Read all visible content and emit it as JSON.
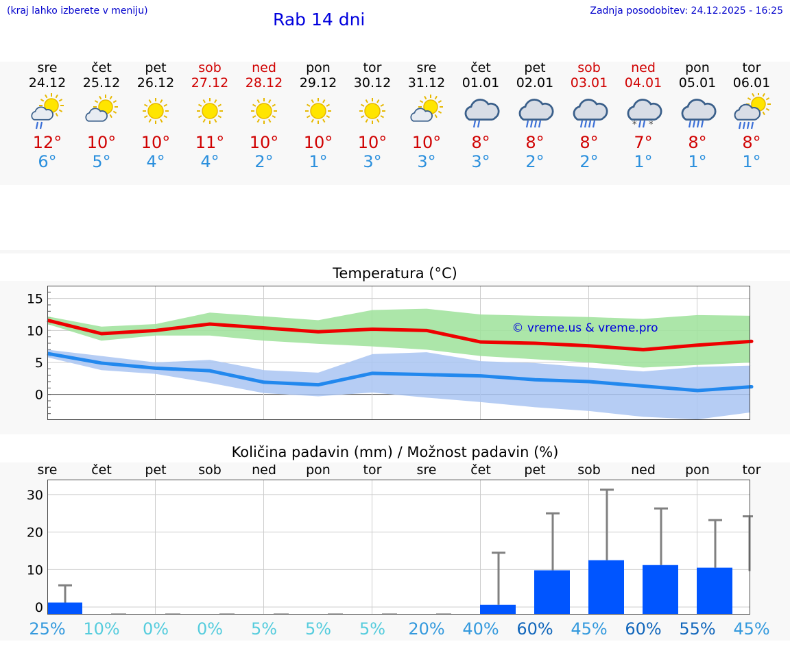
{
  "header": {
    "menu_hint": "(kraj lahko izberete v meniju)",
    "title": "Rab 14 dni",
    "updated": "Zadnja posodobitev: 24.12.2025 - 16:25"
  },
  "days": [
    {
      "name": "sre",
      "date": "24.12",
      "tmax": "12°",
      "tmin": "6°",
      "icon": "sun-cloud-rain-icon",
      "weekend": false,
      "rain": "25%"
    },
    {
      "name": "čet",
      "date": "25.12",
      "tmax": "10°",
      "tmin": "5°",
      "icon": "sun-cloud-icon",
      "weekend": false,
      "rain": "10%"
    },
    {
      "name": "pet",
      "date": "26.12",
      "tmax": "10°",
      "tmin": "4°",
      "icon": "sun-icon",
      "weekend": false,
      "rain": "0%"
    },
    {
      "name": "sob",
      "date": "27.12",
      "tmax": "11°",
      "tmin": "4°",
      "icon": "sun-icon",
      "weekend": true,
      "rain": "0%"
    },
    {
      "name": "ned",
      "date": "28.12",
      "tmax": "10°",
      "tmin": "2°",
      "icon": "sun-icon",
      "weekend": true,
      "rain": "5%"
    },
    {
      "name": "pon",
      "date": "29.12",
      "tmax": "10°",
      "tmin": "1°",
      "icon": "sun-icon",
      "weekend": false,
      "rain": "5%"
    },
    {
      "name": "tor",
      "date": "30.12",
      "tmax": "10°",
      "tmin": "3°",
      "icon": "sun-icon",
      "weekend": false,
      "rain": "5%"
    },
    {
      "name": "sre",
      "date": "31.12",
      "tmax": "10°",
      "tmin": "3°",
      "icon": "sun-cloud-icon",
      "weekend": false,
      "rain": "20%"
    },
    {
      "name": "čet",
      "date": "01.01",
      "tmax": "8°",
      "tmin": "3°",
      "icon": "cloud-rain-icon",
      "weekend": false,
      "rain": "40%"
    },
    {
      "name": "pet",
      "date": "02.01",
      "tmax": "8°",
      "tmin": "2°",
      "icon": "cloud-heavy-rain-icon",
      "weekend": false,
      "rain": "60%"
    },
    {
      "name": "sob",
      "date": "03.01",
      "tmax": "8°",
      "tmin": "2°",
      "icon": "cloud-heavy-rain-icon",
      "weekend": true,
      "rain": "45%"
    },
    {
      "name": "ned",
      "date": "04.01",
      "tmax": "7°",
      "tmin": "1°",
      "icon": "cloud-sleet-icon",
      "weekend": true,
      "rain": "60%"
    },
    {
      "name": "pon",
      "date": "05.01",
      "tmax": "8°",
      "tmin": "1°",
      "icon": "cloud-heavy-rain-icon",
      "weekend": false,
      "rain": "55%"
    },
    {
      "name": "tor",
      "date": "06.01",
      "tmax": "8°",
      "tmin": "1°",
      "icon": "sun-cloud-heavy-rain-icon",
      "weekend": false,
      "rain": "45%"
    }
  ],
  "colors": {
    "max_line": "#ee0000",
    "min_line": "#2288ee",
    "max_band": "#9ee29a",
    "min_band": "#a9c4f2",
    "bar": "#0055ff",
    "errbar": "#808080",
    "rain_light": "#55ccdd",
    "rain_mid": "#3399dd",
    "rain_dark": "#1166bb"
  },
  "chart_data": [
    {
      "type": "line",
      "title": "Temperatura (°C)",
      "watermark": "© vreme.us & vreme.pro",
      "ylim": [
        -4,
        17
      ],
      "yticks": [
        0,
        5,
        10,
        15
      ],
      "x": [
        0,
        1,
        2,
        3,
        4,
        5,
        6,
        7,
        8,
        9,
        10,
        11,
        12,
        13
      ],
      "series": [
        {
          "name": "max",
          "values": [
            11.6,
            9.5,
            10.0,
            11.0,
            10.4,
            9.8,
            10.2,
            10.0,
            8.2,
            8.0,
            7.6,
            7.0,
            7.7,
            8.3
          ]
        },
        {
          "name": "max_low",
          "values": [
            11.0,
            8.4,
            9.2,
            9.2,
            8.4,
            7.9,
            7.5,
            7.0,
            6.0,
            5.5,
            5.0,
            4.2,
            4.6,
            5.0
          ]
        },
        {
          "name": "max_high",
          "values": [
            12.2,
            10.6,
            11.0,
            12.8,
            12.2,
            11.6,
            13.2,
            13.4,
            12.5,
            12.3,
            12.1,
            11.8,
            12.4,
            12.3
          ]
        },
        {
          "name": "min",
          "values": [
            6.4,
            4.9,
            4.1,
            3.7,
            1.9,
            1.5,
            3.3,
            3.1,
            2.9,
            2.3,
            2.0,
            1.3,
            0.6,
            1.2
          ]
        },
        {
          "name": "min_low",
          "values": [
            5.8,
            3.8,
            3.2,
            1.8,
            0.2,
            -0.3,
            0.3,
            -0.5,
            -1.2,
            -2.0,
            -2.6,
            -3.5,
            -3.9,
            -2.8
          ]
        },
        {
          "name": "min_high",
          "values": [
            7.0,
            6.0,
            5.0,
            5.4,
            3.8,
            3.4,
            6.3,
            6.6,
            5.2,
            4.9,
            4.2,
            3.6,
            4.3,
            4.5
          ]
        }
      ]
    },
    {
      "type": "bar",
      "title": "Količina padavin (mm) / Možnost padavin (%)",
      "ylim": [
        -2,
        34
      ],
      "yticks": [
        0,
        10,
        20,
        30
      ],
      "categories": [
        "sre",
        "čet",
        "pet",
        "sob",
        "ned",
        "pon",
        "tor",
        "sre",
        "čet",
        "pet",
        "sob",
        "ned",
        "pon",
        "tor"
      ],
      "values": [
        1.2,
        0,
        0,
        0,
        0,
        0,
        0,
        0,
        0.6,
        9.8,
        12.5,
        11.2,
        10.5,
        9.6
      ],
      "upper": [
        5.8,
        0,
        0,
        0,
        0,
        0,
        0,
        0,
        14.5,
        25.0,
        31.3,
        26.3,
        23.2,
        24.2
      ],
      "probability": [
        "25%",
        "10%",
        "0%",
        "0%",
        "5%",
        "5%",
        "5%",
        "20%",
        "40%",
        "60%",
        "45%",
        "60%",
        "55%",
        "45%"
      ]
    }
  ]
}
